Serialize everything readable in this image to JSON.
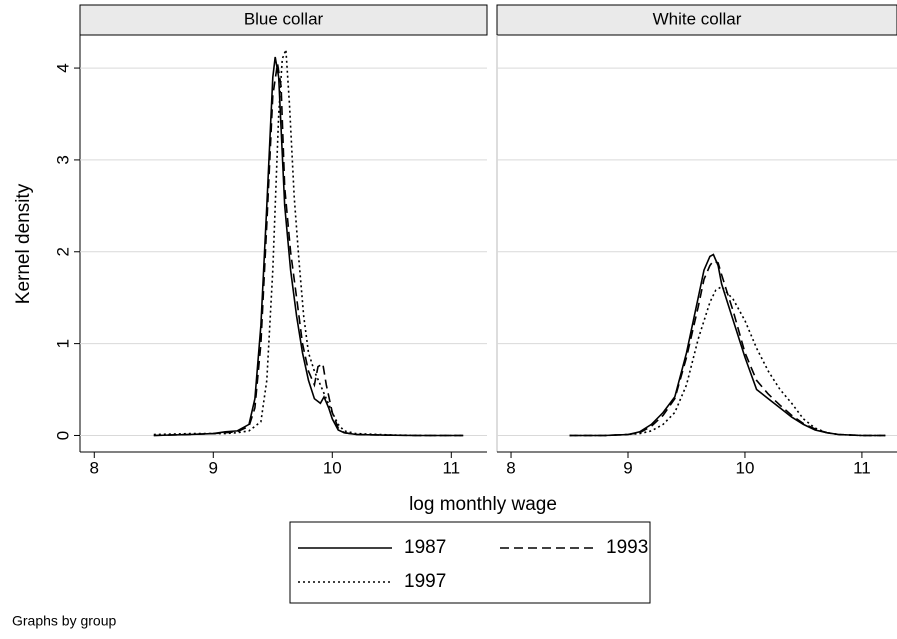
{
  "ylabel": "Kernel density",
  "xlabel": "log monthly wage",
  "note": "Graphs by group",
  "chart_data": [
    {
      "type": "line",
      "title": "Blue collar",
      "xlim": [
        7.88,
        11.3
      ],
      "ylim": [
        -0.18,
        4.36
      ],
      "xticks": [
        8,
        9,
        10,
        11
      ],
      "yticks": [
        0,
        1,
        2,
        3,
        4
      ],
      "grid": true,
      "series": [
        {
          "name": "1987",
          "color": "#000000",
          "dash": "solid",
          "x": [
            8.5,
            8.8,
            9.0,
            9.1,
            9.2,
            9.3,
            9.35,
            9.4,
            9.45,
            9.5,
            9.52,
            9.55,
            9.6,
            9.65,
            9.7,
            9.75,
            9.8,
            9.85,
            9.9,
            9.93,
            9.97,
            10.0,
            10.05,
            10.1,
            10.2,
            10.4,
            10.7,
            11.1
          ],
          "values": [
            0,
            0.01,
            0.02,
            0.04,
            0.05,
            0.12,
            0.4,
            1.2,
            2.5,
            3.9,
            4.12,
            3.9,
            2.5,
            1.8,
            1.3,
            0.9,
            0.6,
            0.4,
            0.35,
            0.42,
            0.3,
            0.18,
            0.06,
            0.03,
            0.01,
            0.005,
            0,
            0
          ]
        },
        {
          "name": "1993",
          "color": "#000000",
          "dash": "dashed",
          "x": [
            8.5,
            8.8,
            9.0,
            9.1,
            9.2,
            9.3,
            9.35,
            9.4,
            9.45,
            9.5,
            9.54,
            9.57,
            9.6,
            9.65,
            9.7,
            9.75,
            9.8,
            9.85,
            9.88,
            9.92,
            9.95,
            10.0,
            10.05,
            10.1,
            10.2,
            10.4,
            10.7,
            11.1
          ],
          "values": [
            0,
            0.01,
            0.02,
            0.03,
            0.04,
            0.1,
            0.3,
            1.0,
            2.3,
            3.7,
            4.05,
            3.8,
            2.7,
            2.0,
            1.5,
            1.0,
            0.7,
            0.55,
            0.75,
            0.78,
            0.55,
            0.25,
            0.08,
            0.03,
            0.01,
            0.005,
            0,
            0
          ]
        },
        {
          "name": "1997",
          "color": "#000000",
          "dash": "dotted",
          "x": [
            8.5,
            8.8,
            9.0,
            9.1,
            9.2,
            9.3,
            9.4,
            9.45,
            9.5,
            9.55,
            9.58,
            9.61,
            9.64,
            9.68,
            9.72,
            9.76,
            9.8,
            9.85,
            9.9,
            9.95,
            10.0,
            10.05,
            10.1,
            10.2,
            10.5,
            10.8,
            11.1
          ],
          "values": [
            0.01,
            0.02,
            0.02,
            0.02,
            0.03,
            0.05,
            0.15,
            0.6,
            1.8,
            3.5,
            4.1,
            4.2,
            3.6,
            2.6,
            1.9,
            1.3,
            0.9,
            0.7,
            0.55,
            0.4,
            0.25,
            0.12,
            0.05,
            0.02,
            0.005,
            0,
            0
          ]
        }
      ]
    },
    {
      "type": "line",
      "title": "White collar",
      "xlim": [
        7.88,
        11.3
      ],
      "ylim": [
        -0.18,
        4.36
      ],
      "xticks": [
        8,
        9,
        10,
        11
      ],
      "yticks": [
        0,
        1,
        2,
        3,
        4
      ],
      "grid": true,
      "series": [
        {
          "color": "#000000",
          "dash": "solid",
          "x": [
            8.5,
            8.8,
            9.0,
            9.1,
            9.2,
            9.3,
            9.4,
            9.5,
            9.6,
            9.65,
            9.7,
            9.73,
            9.77,
            9.8,
            9.85,
            9.9,
            10.0,
            10.1,
            10.2,
            10.3,
            10.4,
            10.5,
            10.6,
            10.7,
            10.8,
            11.0,
            11.2
          ],
          "values": [
            0,
            0,
            0.01,
            0.04,
            0.12,
            0.25,
            0.42,
            0.9,
            1.5,
            1.8,
            1.95,
            1.97,
            1.85,
            1.65,
            1.45,
            1.25,
            0.85,
            0.5,
            0.4,
            0.3,
            0.2,
            0.12,
            0.06,
            0.03,
            0.01,
            0,
            0
          ]
        },
        {
          "color": "#000000",
          "dash": "dashed",
          "x": [
            8.5,
            8.8,
            9.0,
            9.1,
            9.2,
            9.3,
            9.4,
            9.5,
            9.6,
            9.65,
            9.7,
            9.73,
            9.77,
            9.8,
            9.85,
            9.9,
            10.0,
            10.1,
            10.2,
            10.3,
            10.4,
            10.5,
            10.6,
            10.7,
            10.8,
            11.0,
            11.2
          ],
          "values": [
            0,
            0,
            0.01,
            0.03,
            0.1,
            0.22,
            0.4,
            0.85,
            1.4,
            1.7,
            1.85,
            1.9,
            1.88,
            1.75,
            1.55,
            1.35,
            0.9,
            0.6,
            0.45,
            0.33,
            0.22,
            0.13,
            0.07,
            0.03,
            0.01,
            0,
            0
          ]
        },
        {
          "color": "#000000",
          "dash": "dotted",
          "x": [
            8.5,
            8.8,
            9.0,
            9.1,
            9.2,
            9.3,
            9.4,
            9.5,
            9.6,
            9.7,
            9.75,
            9.8,
            9.85,
            9.9,
            10.0,
            10.1,
            10.2,
            10.3,
            10.4,
            10.5,
            10.6,
            10.7,
            10.8,
            11.0,
            11.2
          ],
          "values": [
            0,
            0,
            0.01,
            0.02,
            0.05,
            0.12,
            0.25,
            0.55,
            1.05,
            1.45,
            1.58,
            1.62,
            1.55,
            1.48,
            1.25,
            0.95,
            0.7,
            0.5,
            0.35,
            0.18,
            0.08,
            0.03,
            0.01,
            0,
            0
          ]
        }
      ]
    }
  ]
}
